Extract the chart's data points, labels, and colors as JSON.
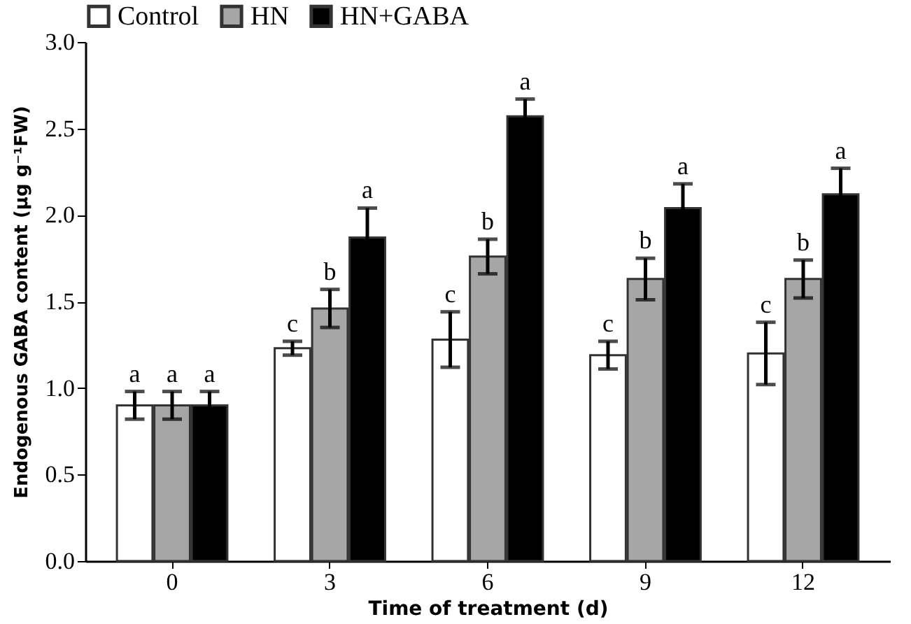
{
  "chart_data": {
    "type": "bar",
    "xlabel": "Time of treatment (d)",
    "ylabel": "Endogenous GABA content (μg g⁻¹FW)",
    "categories": [
      "0",
      "3",
      "6",
      "9",
      "12"
    ],
    "series": [
      {
        "name": "Control",
        "color": "#ffffff",
        "values": [
          0.9,
          1.23,
          1.28,
          1.19,
          1.2
        ],
        "errors": [
          0.08,
          0.04,
          0.16,
          0.08,
          0.18
        ],
        "value_labels": [
          "a",
          "c",
          "c",
          "c",
          "c"
        ]
      },
      {
        "name": "HN",
        "color": "#a6a6a6",
        "values": [
          0.9,
          1.46,
          1.76,
          1.63,
          1.63
        ],
        "errors": [
          0.08,
          0.11,
          0.1,
          0.12,
          0.11
        ],
        "value_labels": [
          "a",
          "b",
          "b",
          "b",
          "b"
        ]
      },
      {
        "name": "HN+GABA",
        "color": "#000000",
        "values": [
          0.9,
          1.87,
          2.57,
          2.04,
          2.12
        ],
        "errors": [
          0.08,
          0.17,
          0.1,
          0.14,
          0.15
        ],
        "value_labels": [
          "a",
          "a",
          "a",
          "a",
          "a"
        ]
      }
    ],
    "ylim": [
      0,
      3
    ],
    "yticks": [
      {
        "value": 0,
        "label": "0.0"
      },
      0.5,
      {
        "value": 1,
        "label": "1.0"
      },
      1.5,
      {
        "value": 2,
        "label": "2.0"
      },
      2.5,
      {
        "value": 3,
        "label": "3.0"
      }
    ],
    "grid": false,
    "legend": "top"
  }
}
